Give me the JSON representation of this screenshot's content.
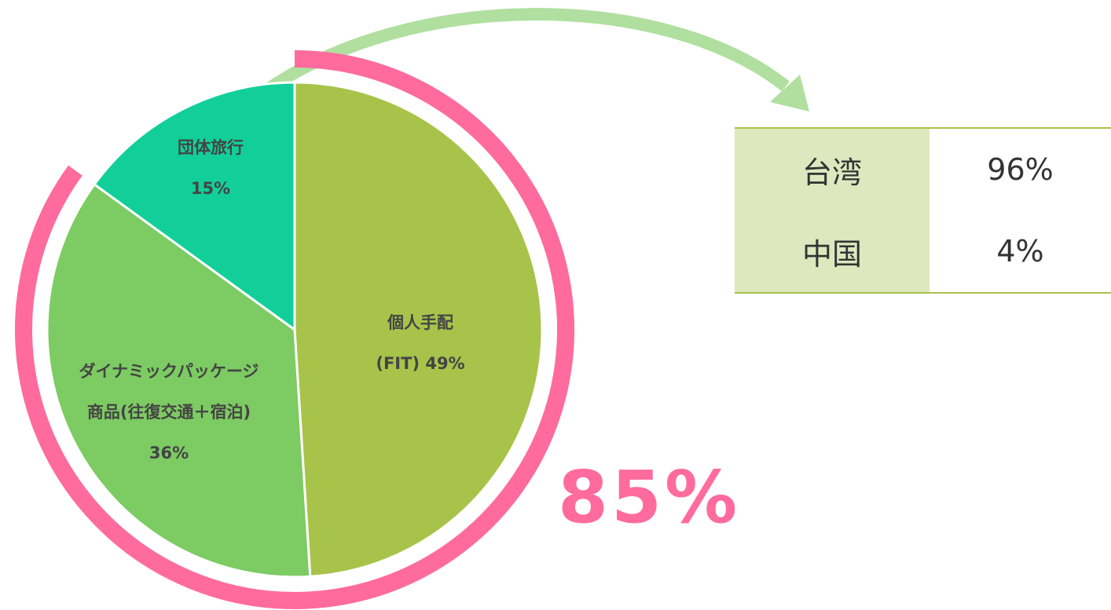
{
  "chart_data": {
    "type": "pie",
    "categories": [
      "個人手配\n(FIT)",
      "ダイナミックパッケージ\n商品(往復交通＋宿泊)",
      "団体旅行"
    ],
    "values": [
      49,
      36,
      15
    ],
    "value_labels": [
      "49%",
      "36%",
      "15%"
    ],
    "colors": [
      "#a8c34a",
      "#7dcb63",
      "#12cf9a"
    ],
    "highlight": {
      "value": 85,
      "label": "85%",
      "color": "#ff6b9d"
    }
  },
  "table": {
    "rows": [
      [
        "台湾",
        "96%"
      ],
      [
        "中国",
        "4%"
      ]
    ]
  }
}
